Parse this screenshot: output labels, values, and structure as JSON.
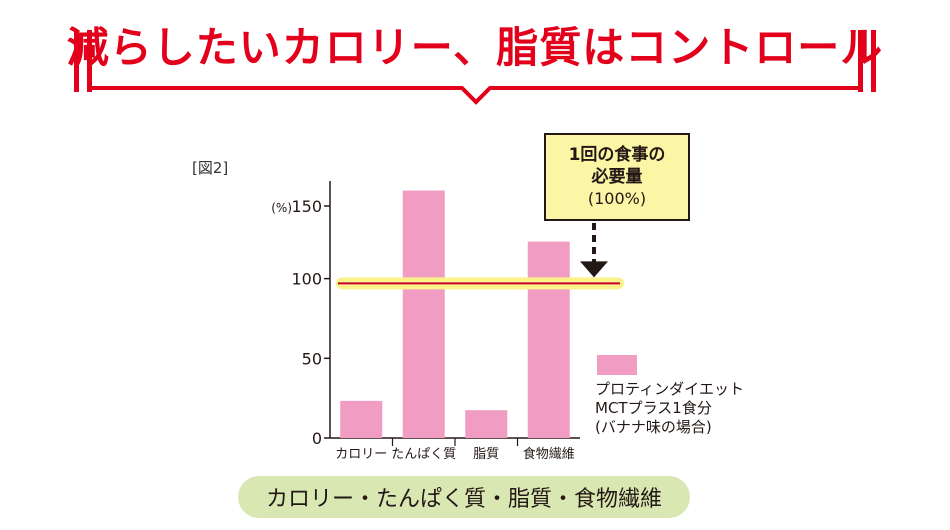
{
  "header": {
    "title": "減らしたいカロリー、脂質はコントロール",
    "accent_color": "#e2001a"
  },
  "figure_label": "[図2]",
  "callout": {
    "line1": "1回の食事の",
    "line2": "必要量",
    "line3": "(100%)",
    "background": "#fbf5a6"
  },
  "legend": {
    "line1": "プロティンダイエット",
    "line2": "MCTプラス1食分",
    "line3": "(バナナ味の場合)",
    "color": "#f09cc3"
  },
  "caption": "カロリー・たんぱく質・脂質・食物繊維",
  "chart_data": {
    "type": "bar",
    "categories": [
      "カロリー",
      "たんぱく質",
      "脂質",
      "食物繊維"
    ],
    "values": [
      24,
      160,
      18,
      127
    ],
    "ylabel": "(%)",
    "ylim": [
      0,
      160
    ],
    "yticks": [
      0,
      50,
      100,
      150
    ],
    "ytick_labels": [
      "0",
      "50",
      "100",
      "150"
    ],
    "reference_line": {
      "value": 100
    },
    "bar_color": "#f09cc3",
    "grid": false
  }
}
